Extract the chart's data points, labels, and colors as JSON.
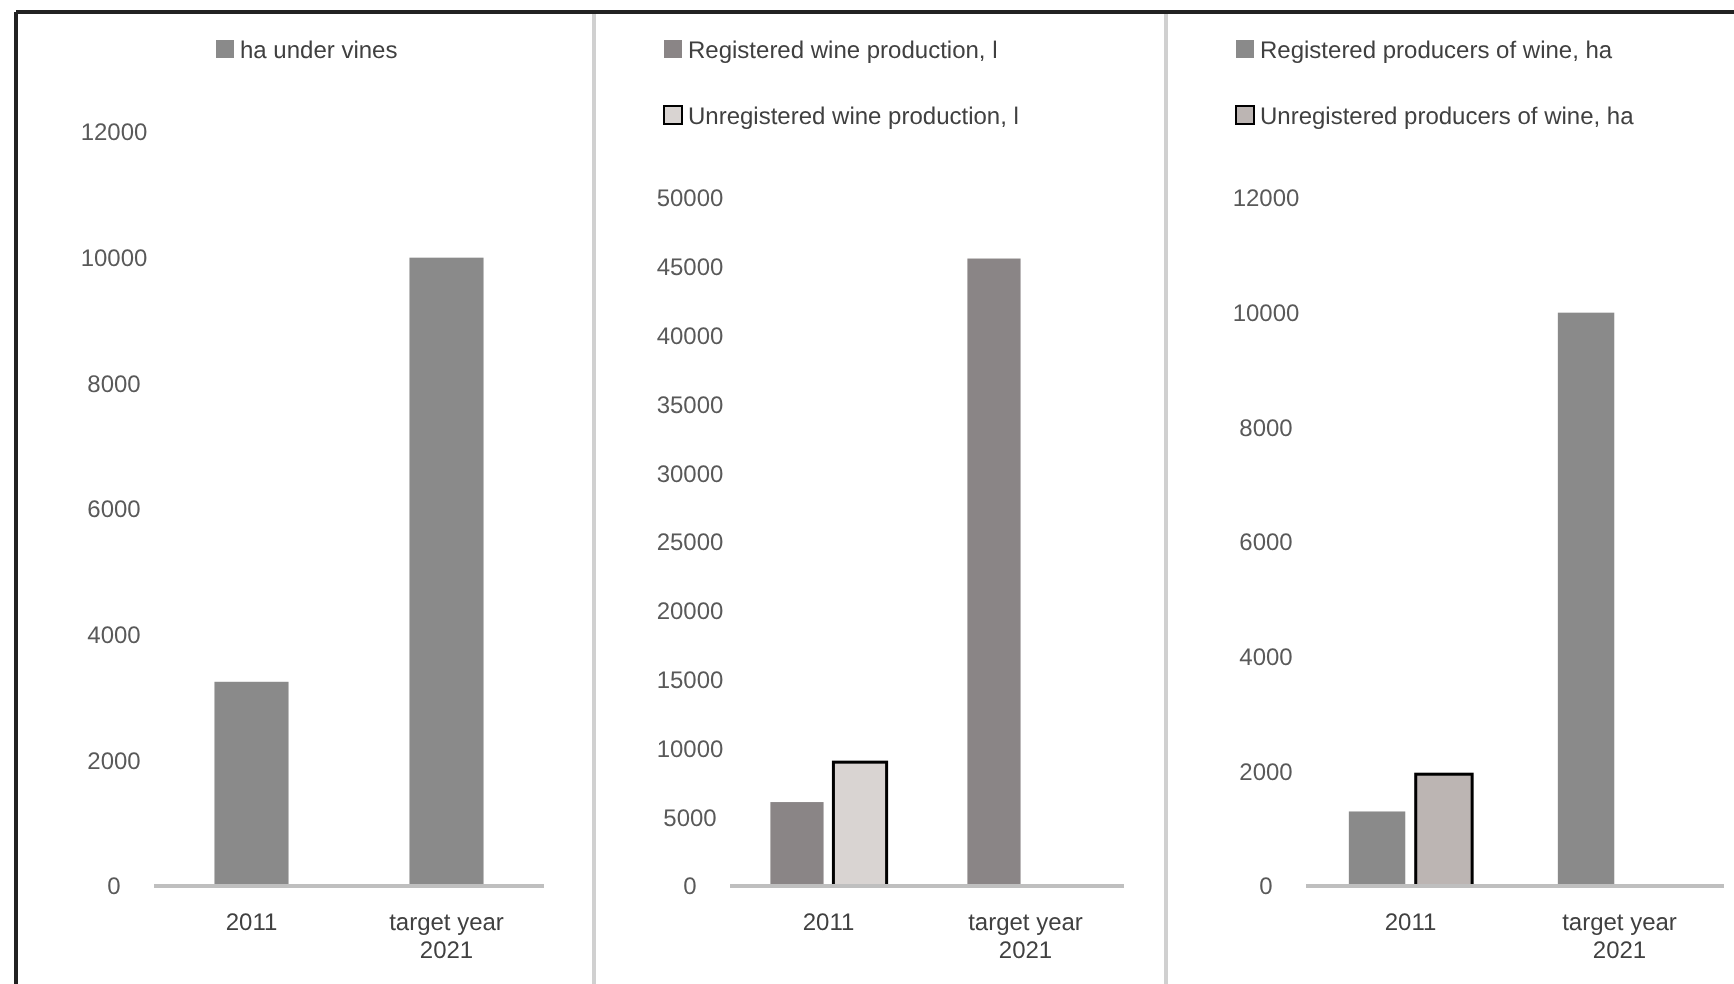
{
  "chart_data": [
    {
      "type": "bar",
      "categories": [
        "2011",
        "target year 2021"
      ],
      "series": [
        {
          "name": "ha under vines",
          "color": "#8a8a8a",
          "values": [
            3250,
            10000
          ]
        }
      ],
      "ylim": [
        0,
        12000
      ],
      "yticks": [
        0,
        2000,
        4000,
        6000,
        8000,
        10000,
        12000
      ],
      "grid": false,
      "legend": "top"
    },
    {
      "type": "bar",
      "categories": [
        "2011",
        "target year 2021"
      ],
      "series": [
        {
          "name": "Registered wine production, l",
          "color": "#8a8586",
          "values": [
            6100,
            45600
          ]
        },
        {
          "name": "Unregistered wine production, l",
          "color": "#d9d4d2",
          "values": [
            9000,
            null
          ]
        }
      ],
      "ylim": [
        0,
        50000
      ],
      "yticks": [
        0,
        5000,
        10000,
        15000,
        20000,
        25000,
        30000,
        35000,
        40000,
        45000,
        50000
      ],
      "grid": false,
      "legend": "top"
    },
    {
      "type": "bar",
      "categories": [
        "2011",
        "target year 2021"
      ],
      "series": [
        {
          "name": "Registered producers of wine, ha",
          "color": "#8a8a8a",
          "values": [
            1300,
            10000
          ]
        },
        {
          "name": "Unregistered producers of wine, ha",
          "color": "#bcb5b3",
          "values": [
            1950,
            null
          ]
        }
      ],
      "ylim": [
        0,
        12000
      ],
      "yticks": [
        0,
        2000,
        4000,
        6000,
        8000,
        10000,
        12000
      ],
      "grid": false,
      "legend": "top"
    }
  ]
}
